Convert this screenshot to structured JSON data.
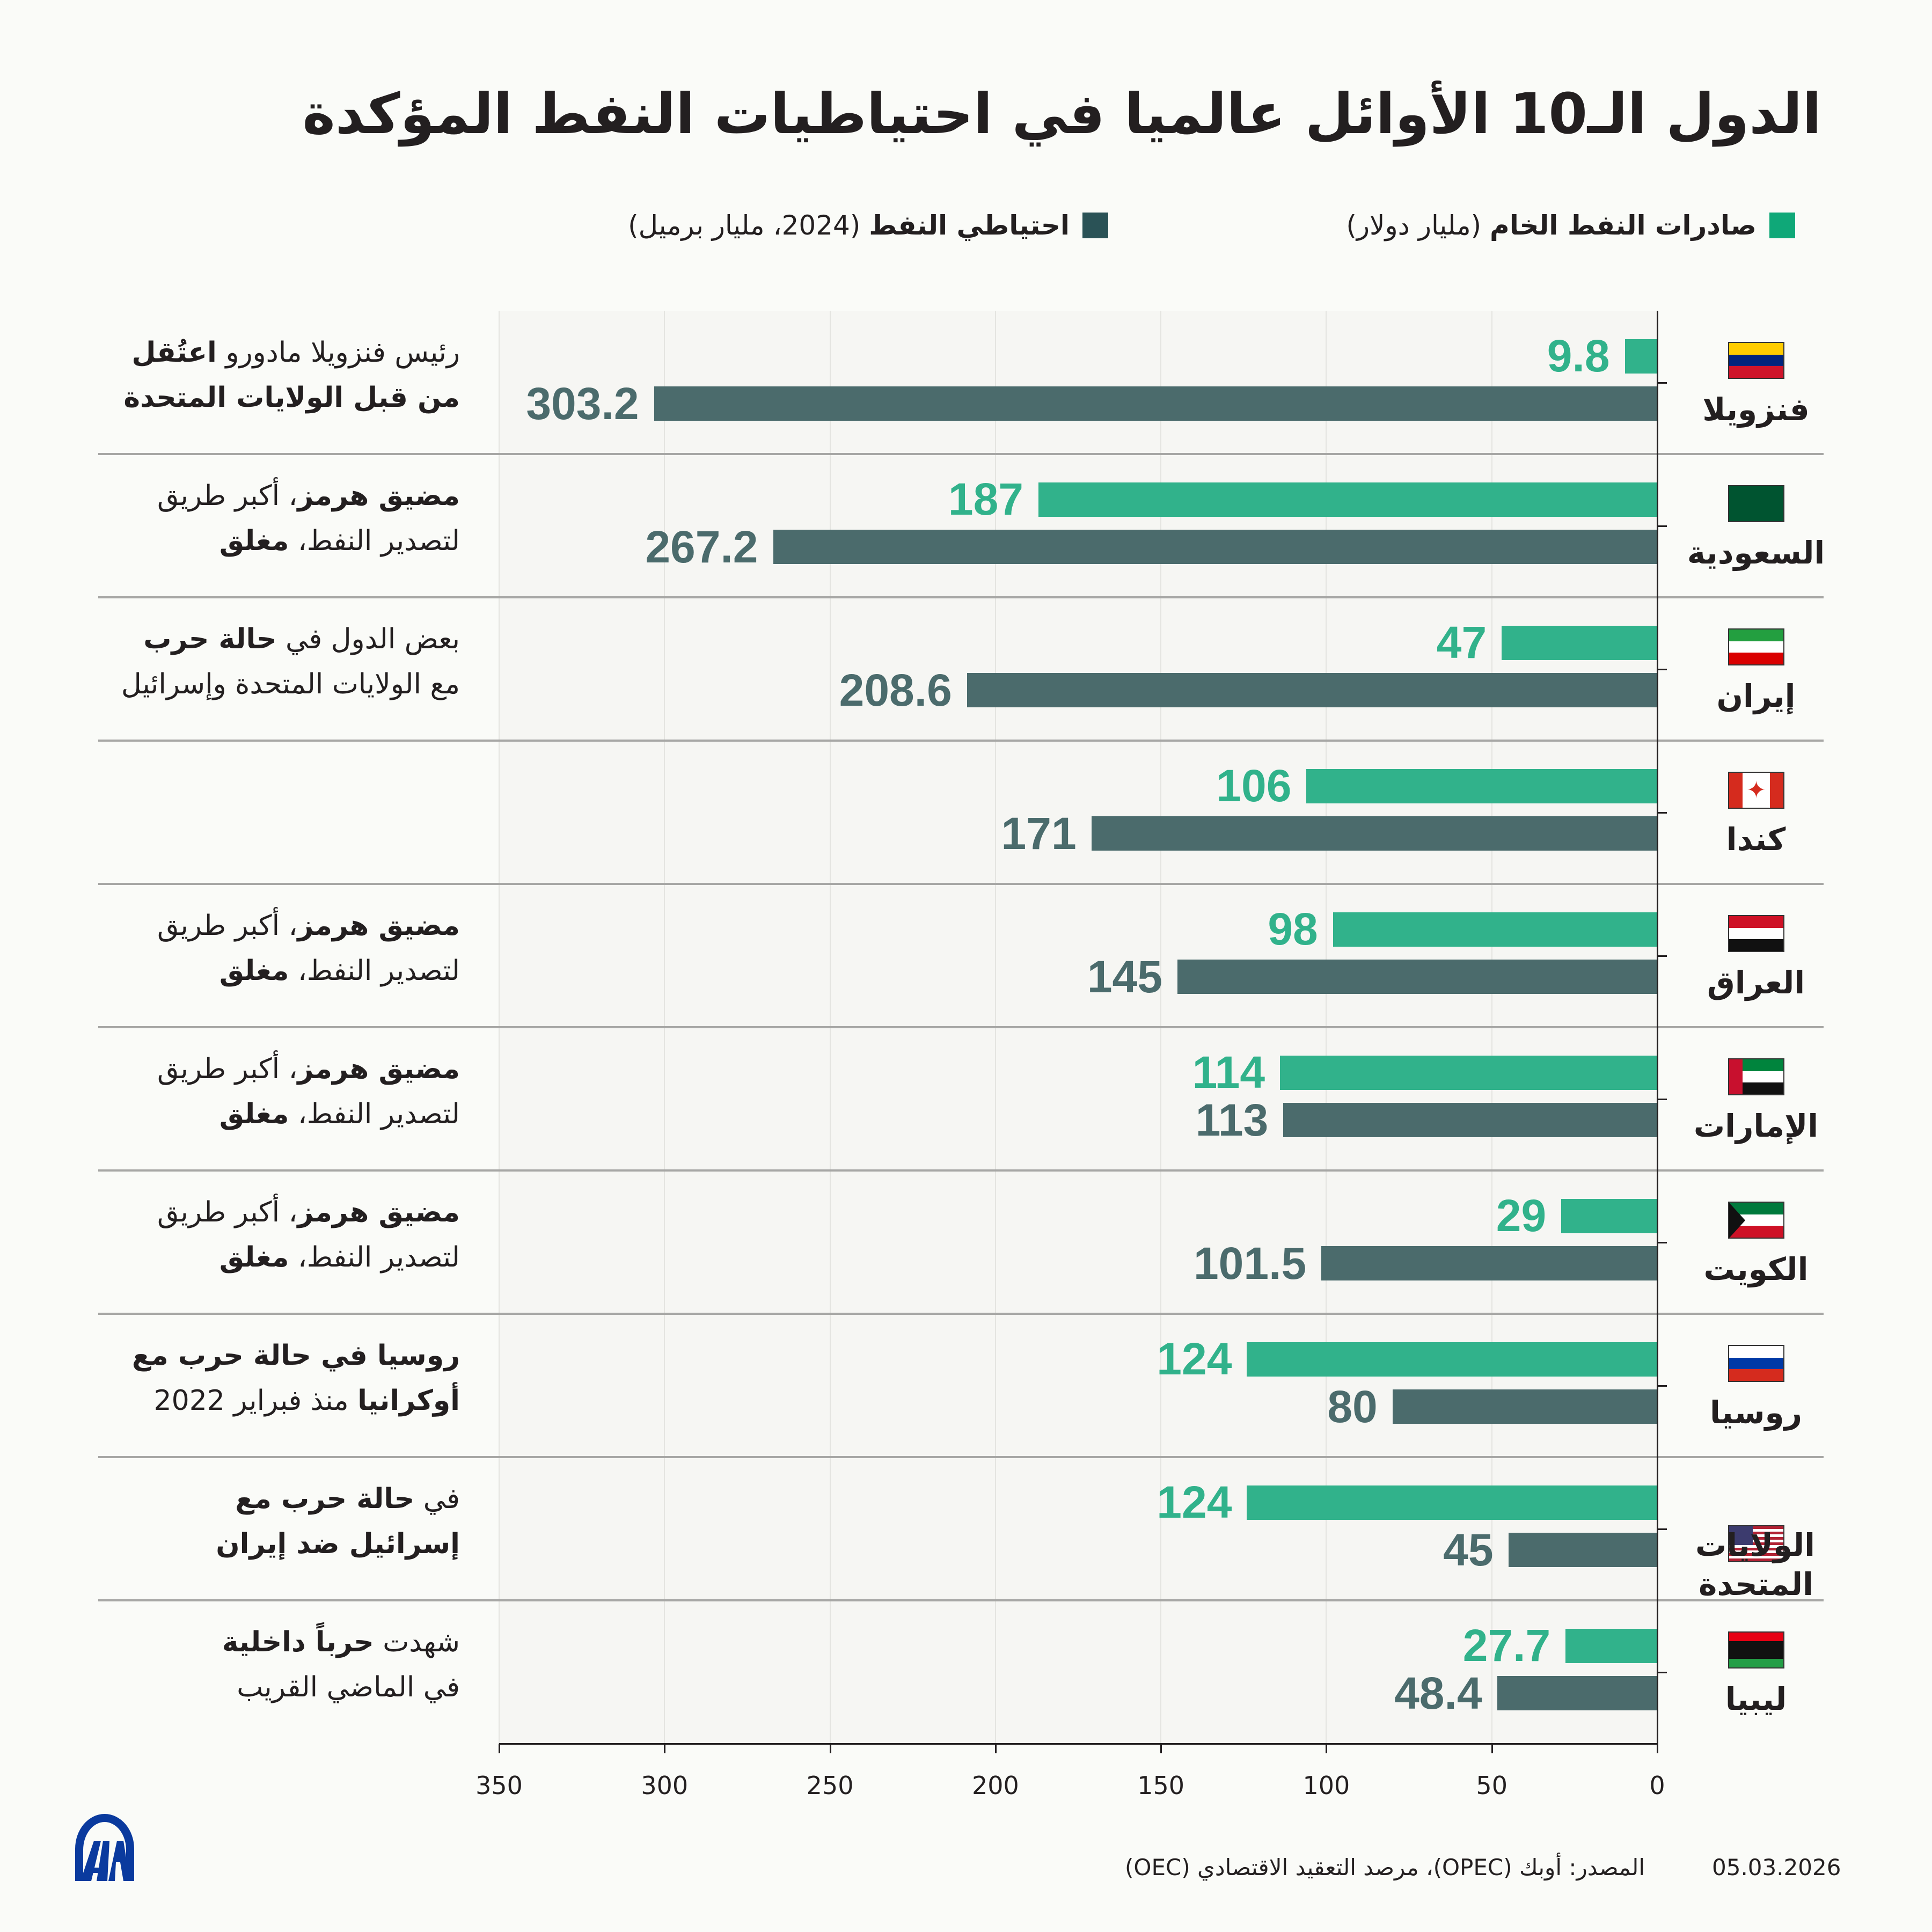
{
  "title": "الدول الـ10 الأوائل عالميا في احتياطيات النفط المؤكدة",
  "legend": [
    {
      "bold": "صادرات النفط الخام",
      "rest": " (مليار دولار)",
      "color": "#0fa878"
    },
    {
      "bold": "احتياطي النفط",
      "rest": " (2024، مليار برميل)",
      "color": "#2a5256"
    }
  ],
  "colors": {
    "exports": "#31b28b",
    "reserves": "#4b6b6c",
    "exports_label": "#31b28b",
    "reserves_label": "#4b6b6c"
  },
  "chart_data": {
    "type": "bar",
    "orientation": "horizontal",
    "axis_direction": "right-to-left",
    "xlim": [
      0,
      350
    ],
    "xticks": [
      "350",
      "300",
      "250",
      "200",
      "150",
      "100",
      "50",
      "0"
    ],
    "grid": true,
    "categories": [
      "فنزويلا",
      "السعودية",
      "إيران",
      "كندا",
      "العراق",
      "الإمارات",
      "الكويت",
      "روسيا",
      "الولايات المتحدة",
      "ليبيا"
    ],
    "series": [
      {
        "name": "صادرات النفط الخام (مليار دولار)",
        "values": [
          9.8,
          187,
          47,
          106,
          98,
          114,
          29,
          124,
          124,
          27.7
        ],
        "labels": [
          "9.8",
          "187",
          "47",
          "106",
          "98",
          "114",
          "29",
          "124",
          "124",
          "27.7"
        ]
      },
      {
        "name": "احتياطي النفط (2024، مليار برميل)",
        "values": [
          303.2,
          267.2,
          208.6,
          171,
          145,
          113,
          101.5,
          80,
          45,
          48.4
        ],
        "labels": [
          "303.2",
          "267.2",
          "208.6",
          "171",
          "145",
          "113",
          "101.5",
          "80",
          "45",
          "48.4"
        ]
      }
    ]
  },
  "rows": [
    {
      "flag": "flag-venezuela",
      "ann": [
        [
          {
            "t": "رئيس فنزويلا مادورو ",
            "b": false
          },
          {
            "t": "اعتُقل",
            "b": true
          }
        ],
        [
          {
            "t": "من قبل الولايات المتحدة",
            "b": true
          }
        ]
      ]
    },
    {
      "flag": "flag-saudi-arabia",
      "ann": [
        [
          {
            "t": "مضيق هرمز",
            "b": true
          },
          {
            "t": "، أكبر طريق",
            "b": false
          }
        ],
        [
          {
            "t": "لتصدير النفط، ",
            "b": false
          },
          {
            "t": "مغلق",
            "b": true
          }
        ]
      ]
    },
    {
      "flag": "flag-iran",
      "ann": [
        [
          {
            "t": "بعض الدول في ",
            "b": false
          },
          {
            "t": "حالة حرب",
            "b": true
          }
        ],
        [
          {
            "t": "مع الولايات المتحدة وإسرائيل",
            "b": false
          }
        ]
      ]
    },
    {
      "flag": "flag-canada",
      "ann": []
    },
    {
      "flag": "flag-iraq",
      "ann": [
        [
          {
            "t": "مضيق هرمز",
            "b": true
          },
          {
            "t": "، أكبر طريق",
            "b": false
          }
        ],
        [
          {
            "t": "لتصدير النفط، ",
            "b": false
          },
          {
            "t": "مغلق",
            "b": true
          }
        ]
      ]
    },
    {
      "flag": "flag-uae",
      "ann": [
        [
          {
            "t": "مضيق هرمز",
            "b": true
          },
          {
            "t": "، أكبر طريق",
            "b": false
          }
        ],
        [
          {
            "t": "لتصدير النفط، ",
            "b": false
          },
          {
            "t": "مغلق",
            "b": true
          }
        ]
      ]
    },
    {
      "flag": "flag-kuwait",
      "ann": [
        [
          {
            "t": "مضيق هرمز",
            "b": true
          },
          {
            "t": "، أكبر طريق",
            "b": false
          }
        ],
        [
          {
            "t": "لتصدير النفط، ",
            "b": false
          },
          {
            "t": "مغلق",
            "b": true
          }
        ]
      ]
    },
    {
      "flag": "flag-russia",
      "ann": [
        [
          {
            "t": "روسيا في حالة حرب مع",
            "b": true
          }
        ],
        [
          {
            "t": "أوكرانيا",
            "b": true
          },
          {
            "t": " منذ فبراير 2022",
            "b": false
          }
        ]
      ]
    },
    {
      "flag": "flag-usa",
      "ann": [
        [
          {
            "t": "في ",
            "b": false
          },
          {
            "t": "حالة حرب مع",
            "b": true
          }
        ],
        [
          {
            "t": "إسرائيل ضد إيران",
            "b": true
          }
        ]
      ]
    },
    {
      "flag": "flag-libya",
      "ann": [
        [
          {
            "t": "شهدت ",
            "b": false
          },
          {
            "t": "حرباً داخلية",
            "b": true
          }
        ],
        [
          {
            "t": "في الماضي القريب",
            "b": false
          }
        ]
      ]
    }
  ],
  "footer": {
    "date": "05.03.2026",
    "source": "المصدر: أوبك (OPEC)، مرصد التعقيد الاقتصادي (OEC)",
    "logo": "AA"
  }
}
